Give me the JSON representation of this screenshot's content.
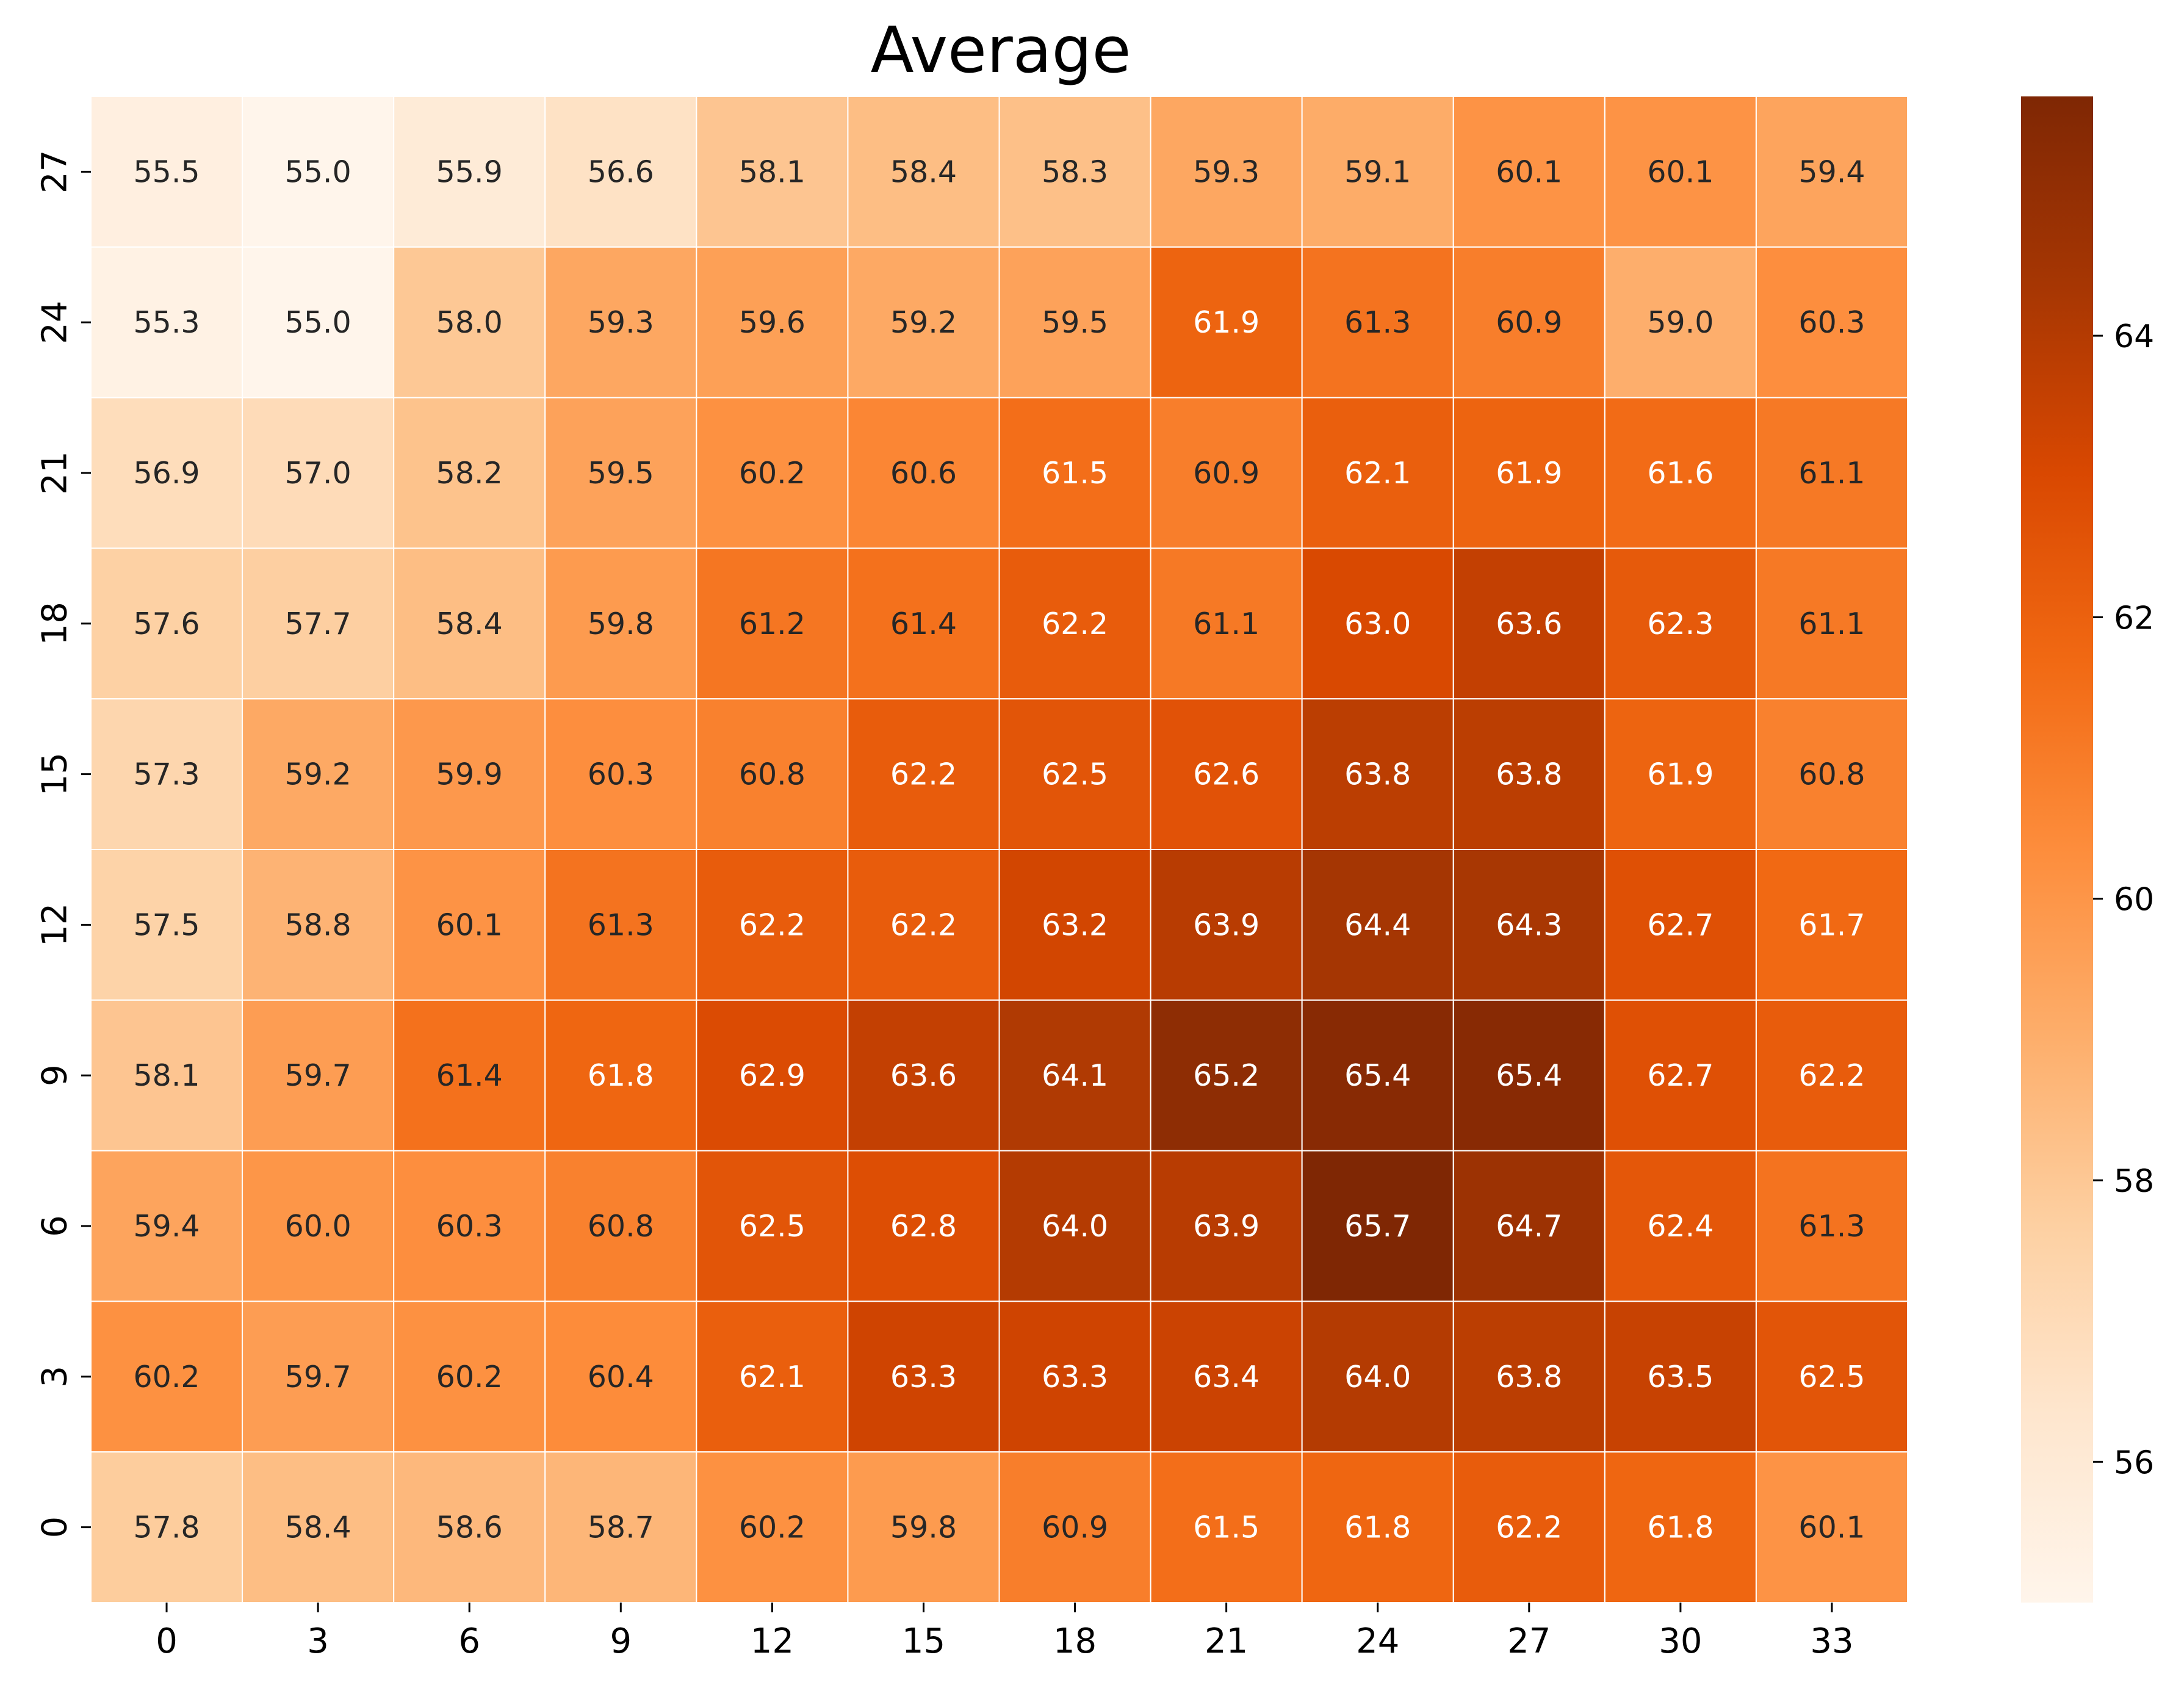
{
  "chart_data": {
    "type": "heatmap",
    "title": "Average",
    "x_categories": [
      "0",
      "3",
      "6",
      "9",
      "12",
      "15",
      "18",
      "21",
      "24",
      "27",
      "30",
      "33"
    ],
    "y_categories": [
      "27",
      "24",
      "21",
      "18",
      "15",
      "12",
      "9",
      "6",
      "3",
      "0"
    ],
    "values": [
      [
        55.5,
        55.0,
        55.9,
        56.6,
        58.1,
        58.4,
        58.3,
        59.3,
        59.1,
        60.1,
        60.1,
        59.4
      ],
      [
        55.3,
        55.0,
        58.0,
        59.3,
        59.6,
        59.2,
        59.5,
        61.9,
        61.3,
        60.9,
        59.0,
        60.3
      ],
      [
        56.9,
        57.0,
        58.2,
        59.5,
        60.2,
        60.6,
        61.5,
        60.9,
        62.1,
        61.9,
        61.6,
        61.1
      ],
      [
        57.6,
        57.7,
        58.4,
        59.8,
        61.2,
        61.4,
        62.2,
        61.1,
        63.0,
        63.6,
        62.3,
        61.1
      ],
      [
        57.3,
        59.2,
        59.9,
        60.3,
        60.8,
        62.2,
        62.5,
        62.6,
        63.8,
        63.8,
        61.9,
        60.8
      ],
      [
        57.5,
        58.8,
        60.1,
        61.3,
        62.2,
        62.2,
        63.2,
        63.9,
        64.4,
        64.3,
        62.7,
        61.7
      ],
      [
        58.1,
        59.7,
        61.4,
        61.8,
        62.9,
        63.6,
        64.1,
        65.2,
        65.4,
        65.4,
        62.7,
        62.2
      ],
      [
        59.4,
        60.0,
        60.3,
        60.8,
        62.5,
        62.8,
        64.0,
        63.9,
        65.7,
        64.7,
        62.4,
        61.3
      ],
      [
        60.2,
        59.7,
        60.2,
        60.4,
        62.1,
        63.3,
        63.3,
        63.4,
        64.0,
        63.8,
        63.5,
        62.5
      ],
      [
        57.8,
        58.4,
        58.6,
        58.7,
        60.2,
        59.8,
        60.9,
        61.5,
        61.8,
        62.2,
        61.8,
        60.1
      ]
    ],
    "color_range": [
      55.0,
      65.7
    ],
    "colormap": "Oranges",
    "colormap_stops": [
      "#fff5eb",
      "#fee6ce",
      "#fdd0a2",
      "#fdae6b",
      "#fd8d3c",
      "#f16913",
      "#d94801",
      "#a63603",
      "#7f2704"
    ],
    "colorbar_ticks": [
      "56",
      "58",
      "60",
      "62",
      "64"
    ],
    "colorbar_tick_values": [
      56,
      58,
      60,
      62,
      64
    ],
    "grid_line_color": "#ffffff",
    "label_color_dark": "#262626",
    "label_color_light": "#ffffff"
  }
}
